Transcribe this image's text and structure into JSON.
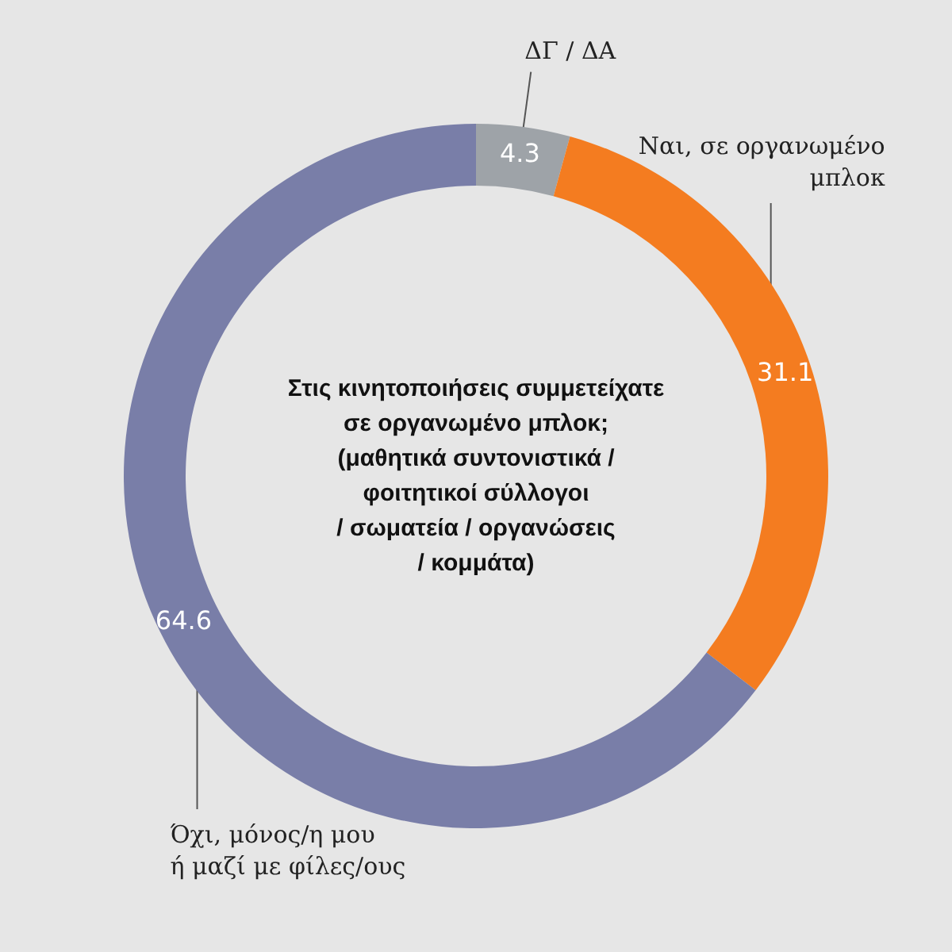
{
  "chart_data": {
    "type": "donut",
    "title": "Στις κινητοποιήσεις συμμετείχατε\nσε οργανωμένο μπλοκ;\n(μαθητικά συντονιστικά /\nφοιτητικοί σύλλογοι\n/ σωματεία / οργανώσεις\n/ κομμάτα)",
    "categories": [
      "ΔΓ / ΔΑ",
      "Ναι, σε οργανωμένο\nμπλοκ",
      "Όχι, μόνος/η μου\nή μαζί με φίλες/ους"
    ],
    "values": [
      4.3,
      31.1,
      64.6
    ],
    "colors": [
      "#9ea3a8",
      "#f47c20",
      "#797ea8"
    ],
    "data_labels": true,
    "legend": false
  }
}
